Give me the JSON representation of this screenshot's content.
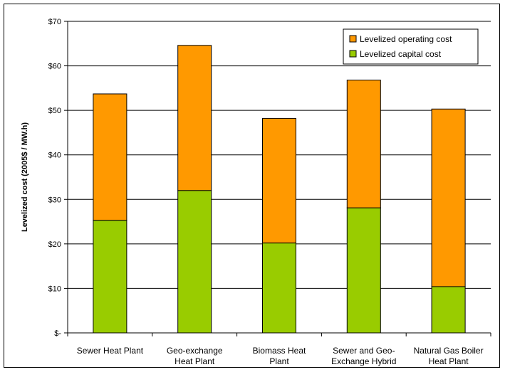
{
  "chart_data": {
    "type": "bar",
    "stacked": true,
    "categories": [
      [
        "Sewer Heat Plant"
      ],
      [
        "Geo-exchange",
        "Heat Plant"
      ],
      [
        "Biomass Heat",
        "Plant"
      ],
      [
        "Sewer and Geo-",
        "Exchange Hybrid"
      ],
      [
        "Natural Gas Boiler",
        "Heat Plant"
      ]
    ],
    "series": [
      {
        "name": "Levelized capital cost",
        "color": "#99cc00",
        "values": [
          25.3,
          32.0,
          20.2,
          28.1,
          10.4
        ]
      },
      {
        "name": "Levelized operating cost",
        "color": "#ff9900",
        "values": [
          28.4,
          32.6,
          28.0,
          28.7,
          39.9
        ]
      }
    ],
    "ylabel": "Levelized cost (2005$ / MW.h)",
    "ylim": [
      0,
      70
    ],
    "yticks": [
      0,
      10,
      20,
      30,
      40,
      50,
      60,
      70
    ],
    "ytick_labels": [
      "$-",
      "$10",
      "$20",
      "$30",
      "$40",
      "$50",
      "$60",
      "$70"
    ],
    "grid": true,
    "legend_placement": "top-right"
  }
}
